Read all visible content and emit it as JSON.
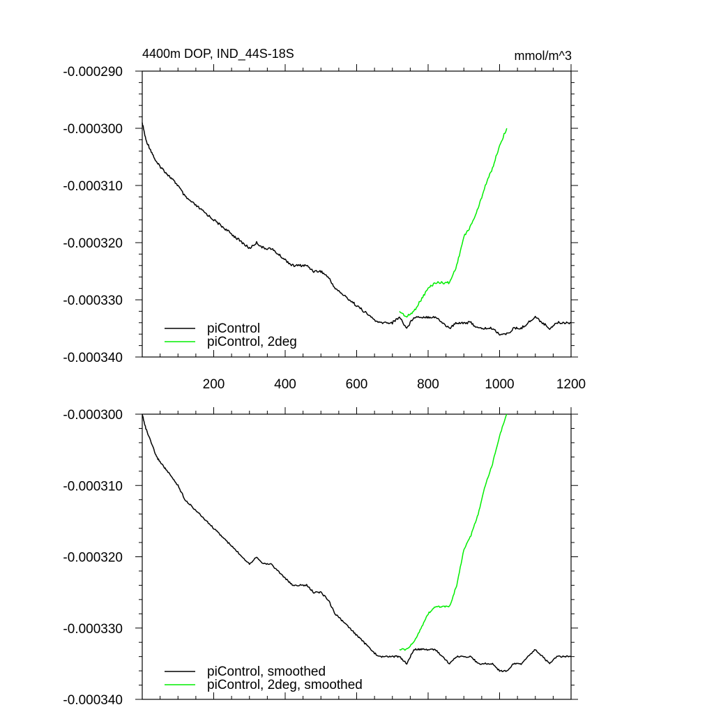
{
  "chart_data": [
    {
      "type": "line",
      "title": "4400m DOP, IND_44S-18S",
      "units": "mmol/m^3",
      "xlim": [
        0,
        1200
      ],
      "ylim": [
        -0.00034,
        -0.00029
      ],
      "x_ticks": [
        200,
        400,
        600,
        800,
        1000,
        1200
      ],
      "x_tick_labels": [
        "200",
        "400",
        "600",
        "800",
        "1000",
        "1200"
      ],
      "y_ticks": [
        -0.00029,
        -0.0003,
        -0.00031,
        -0.00032,
        -0.00033,
        -0.00034
      ],
      "y_tick_labels": [
        "-0.000290",
        "-0.000300",
        "-0.000310",
        "-0.000320",
        "-0.000330",
        "-0.000340"
      ],
      "legend_position": "bottom-left",
      "series": [
        {
          "name": "piControl",
          "color": "#000000",
          "x": [
            0,
            10,
            25,
            40,
            55,
            70,
            85,
            100,
            120,
            140,
            160,
            180,
            200,
            220,
            240,
            260,
            280,
            300,
            320,
            340,
            360,
            380,
            400,
            420,
            440,
            460,
            480,
            500,
            520,
            540,
            560,
            580,
            600,
            620,
            640,
            660,
            680,
            700,
            720,
            740,
            760,
            780,
            800,
            820,
            840,
            860,
            880,
            900,
            920,
            940,
            960,
            980,
            1000,
            1020,
            1040,
            1060,
            1080,
            1100,
            1120,
            1140,
            1160,
            1180,
            1200
          ],
          "y": [
            -0.000299,
            -0.000302,
            -0.000304,
            -0.000306,
            -0.000307,
            -0.000308,
            -0.000309,
            -0.00031,
            -0.000312,
            -0.000313,
            -0.000314,
            -0.000315,
            -0.000316,
            -0.000317,
            -0.000318,
            -0.000319,
            -0.00032,
            -0.000321,
            -0.00032,
            -0.000321,
            -0.000321,
            -0.000322,
            -0.000323,
            -0.000324,
            -0.000324,
            -0.000324,
            -0.000325,
            -0.000325,
            -0.000326,
            -0.000328,
            -0.000329,
            -0.00033,
            -0.000331,
            -0.000332,
            -0.000333,
            -0.000334,
            -0.000334,
            -0.000334,
            -0.000333,
            -0.000335,
            -0.000333,
            -0.000333,
            -0.000333,
            -0.000333,
            -0.000334,
            -0.000335,
            -0.000334,
            -0.000334,
            -0.000334,
            -0.000335,
            -0.000335,
            -0.000335,
            -0.000336,
            -0.000336,
            -0.000335,
            -0.000335,
            -0.000334,
            -0.000333,
            -0.000334,
            -0.000335,
            -0.000334,
            -0.000334,
            -0.000334
          ]
        },
        {
          "name": "piControl, 2deg",
          "color": "#00ee00",
          "x": [
            720,
            740,
            760,
            780,
            800,
            820,
            840,
            860,
            880,
            900,
            920,
            940,
            960,
            980,
            1000,
            1020
          ],
          "y": [
            -0.000332,
            -0.000333,
            -0.000332,
            -0.00033,
            -0.000328,
            -0.000327,
            -0.000327,
            -0.000327,
            -0.000324,
            -0.000319,
            -0.000317,
            -0.000314,
            -0.00031,
            -0.000307,
            -0.000303,
            -0.0003
          ]
        }
      ]
    },
    {
      "type": "line",
      "xlim": [
        0,
        1200
      ],
      "ylim": [
        -0.00034,
        -0.0003
      ],
      "x_ticks": [
        200,
        400,
        600,
        800,
        1000,
        1200
      ],
      "x_tick_labels": [],
      "y_ticks": [
        -0.0003,
        -0.00031,
        -0.00032,
        -0.00033,
        -0.00034
      ],
      "y_tick_labels": [
        "-0.000300",
        "-0.000310",
        "-0.000320",
        "-0.000330",
        "-0.000340"
      ],
      "legend_position": "bottom-left",
      "series": [
        {
          "name": "piControl, smoothed",
          "color": "#000000",
          "x": [
            0,
            10,
            25,
            40,
            55,
            70,
            85,
            100,
            120,
            140,
            160,
            180,
            200,
            220,
            240,
            260,
            280,
            300,
            320,
            340,
            360,
            380,
            400,
            420,
            440,
            460,
            480,
            500,
            520,
            540,
            560,
            580,
            600,
            620,
            640,
            660,
            680,
            700,
            720,
            740,
            760,
            780,
            800,
            820,
            840,
            860,
            880,
            900,
            920,
            940,
            960,
            980,
            1000,
            1020,
            1040,
            1060,
            1080,
            1100,
            1120,
            1140,
            1160,
            1180,
            1200
          ],
          "y": [
            -0.0003,
            -0.000302,
            -0.000304,
            -0.000306,
            -0.000307,
            -0.000308,
            -0.000309,
            -0.00031,
            -0.000312,
            -0.000313,
            -0.000314,
            -0.000315,
            -0.000316,
            -0.000317,
            -0.000318,
            -0.000319,
            -0.00032,
            -0.000321,
            -0.00032,
            -0.000321,
            -0.000321,
            -0.000322,
            -0.000323,
            -0.000324,
            -0.000324,
            -0.000324,
            -0.000325,
            -0.000325,
            -0.000326,
            -0.000328,
            -0.000329,
            -0.00033,
            -0.000331,
            -0.000332,
            -0.000333,
            -0.000334,
            -0.000334,
            -0.000334,
            -0.000334,
            -0.000335,
            -0.000333,
            -0.000333,
            -0.000333,
            -0.000333,
            -0.000334,
            -0.000335,
            -0.000334,
            -0.000334,
            -0.000334,
            -0.000335,
            -0.000335,
            -0.000335,
            -0.000336,
            -0.000336,
            -0.000335,
            -0.000335,
            -0.000334,
            -0.000333,
            -0.000334,
            -0.000335,
            -0.000334,
            -0.000334,
            -0.000334
          ]
        },
        {
          "name": "piControl, 2deg, smoothed",
          "color": "#00ee00",
          "x": [
            720,
            740,
            760,
            780,
            800,
            820,
            840,
            860,
            880,
            900,
            920,
            940,
            960,
            980,
            1000,
            1020
          ],
          "y": [
            -0.000333,
            -0.000333,
            -0.000332,
            -0.00033,
            -0.000328,
            -0.000327,
            -0.000327,
            -0.000327,
            -0.000324,
            -0.000319,
            -0.000317,
            -0.000314,
            -0.00031,
            -0.000307,
            -0.000303,
            -0.0003
          ]
        }
      ]
    }
  ]
}
